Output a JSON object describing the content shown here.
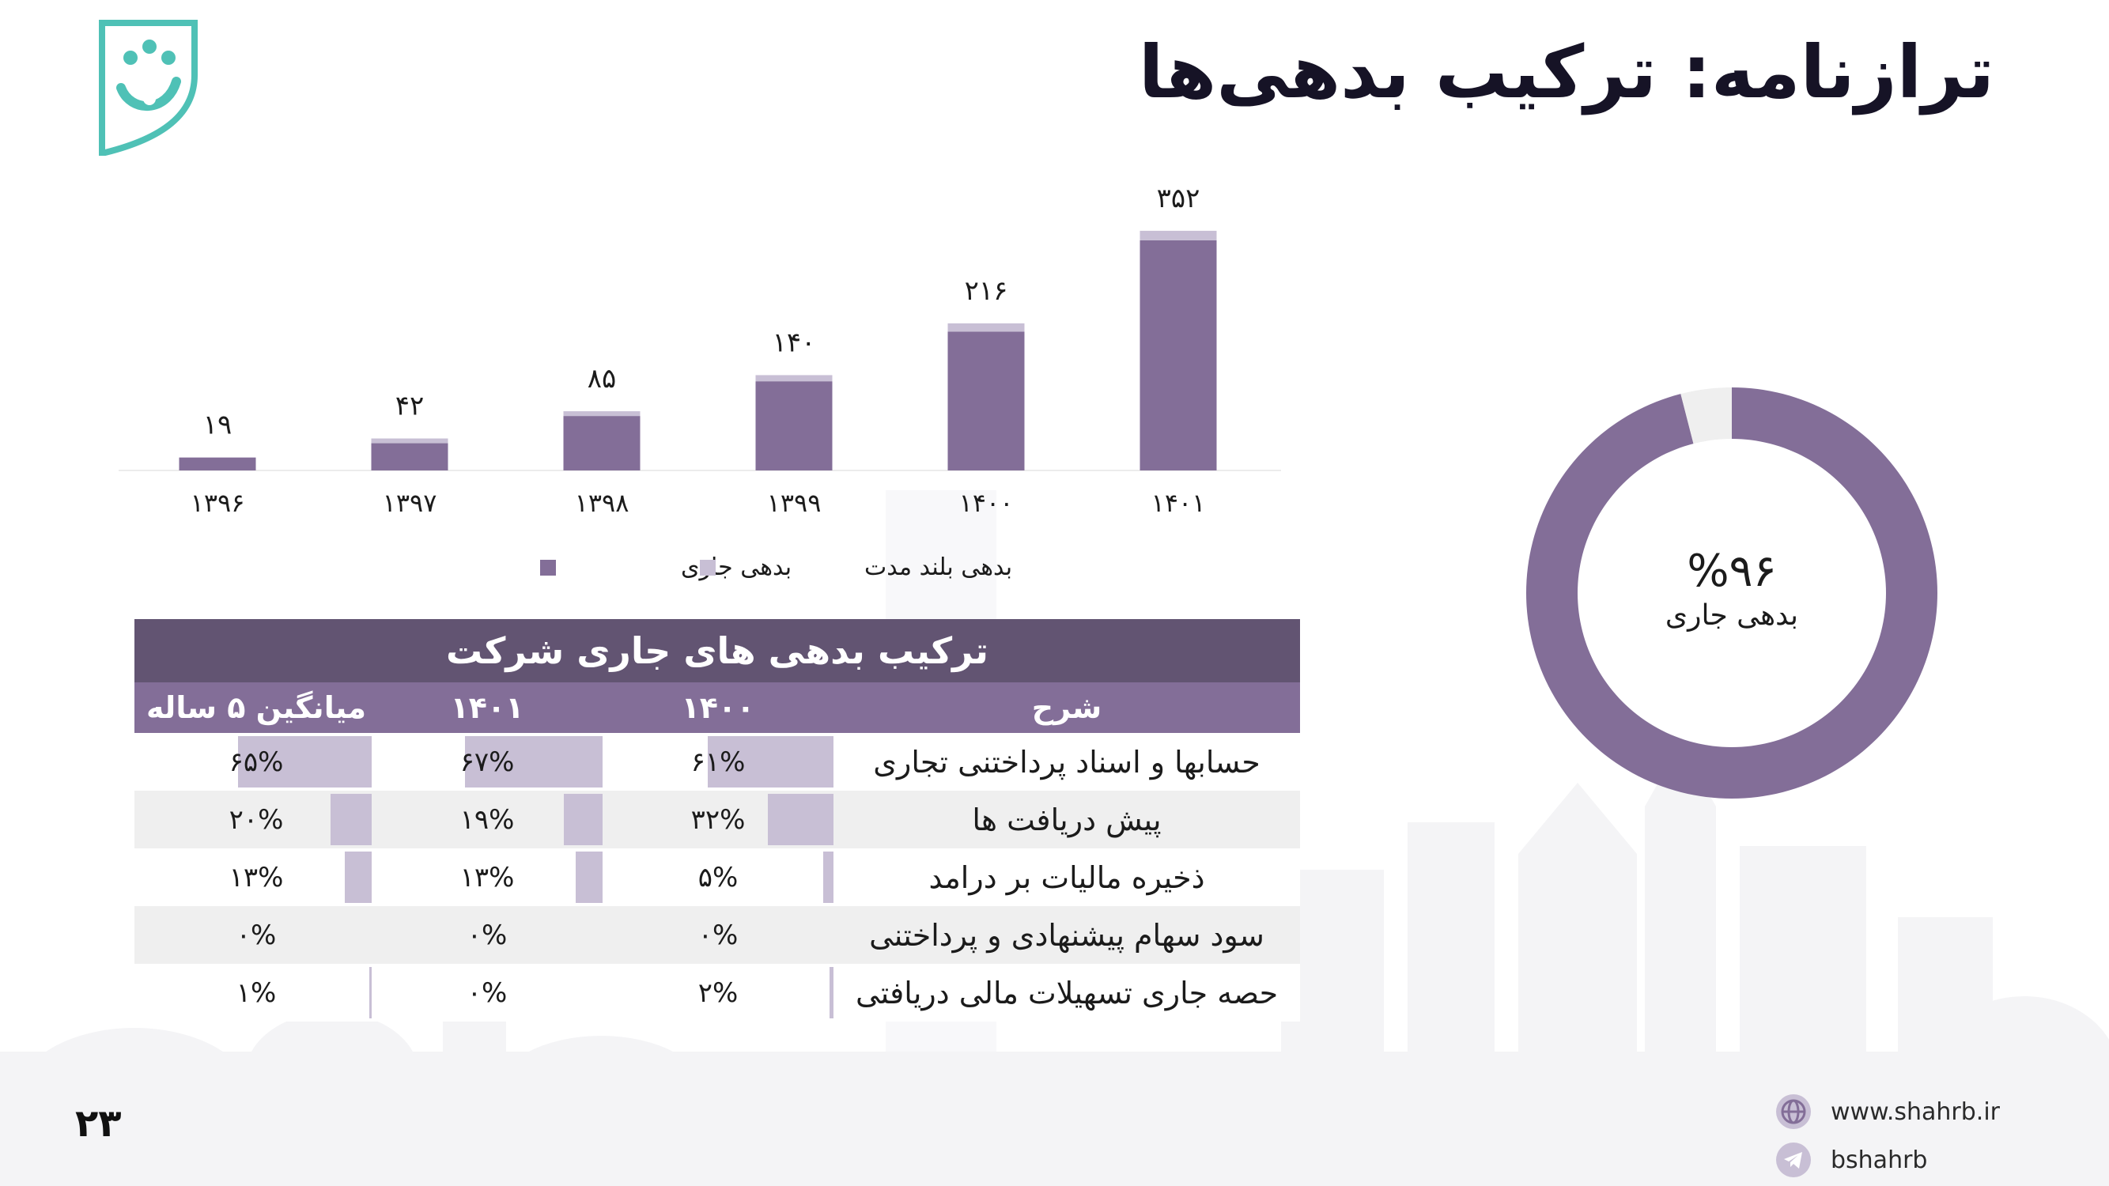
{
  "title": "ترازنامه: ترکیب بدهی‌ها",
  "page_number": "۲۳",
  "colors": {
    "current": "#836e98",
    "long_term": "#c8bfd5",
    "table_title_bg": "#625472",
    "table_header_bg": "#836e98",
    "table_bar": "#c8bfd5",
    "logo": "#4fc1b6",
    "donut_rest": "#efefef"
  },
  "chart_data": [
    {
      "type": "bar",
      "stacked": true,
      "categories": [
        "۱۳۹۶",
        "۱۳۹۷",
        "۱۳۹۸",
        "۱۳۹۹",
        "۱۴۰۰",
        "۱۴۰۱"
      ],
      "totals": [
        19,
        42,
        85,
        140,
        216,
        352
      ],
      "total_labels": [
        "۱۹",
        "۴۲",
        "۸۵",
        "۱۴۰",
        "۲۱۶",
        "۳۵۲"
      ],
      "series": [
        {
          "name": "بدهی جاری",
          "values": [
            19,
            40,
            80,
            131,
            204,
            338
          ]
        },
        {
          "name": "بدهی بلند مدت",
          "values": [
            0,
            2,
            5,
            9,
            12,
            14
          ]
        }
      ],
      "ylim": [
        0,
        360
      ],
      "legend_position": "bottom",
      "grid": false
    },
    {
      "type": "pie",
      "donut": true,
      "values": [
        96,
        4
      ],
      "center_value": "%۹۶",
      "center_label": "بدهی جاری"
    }
  ],
  "table": {
    "title": "ترکیب بدهی های جاری شرکت",
    "headers": [
      "شرح",
      "۱۴۰۰",
      "۱۴۰۱",
      "میانگین ۵ ساله"
    ],
    "rows": [
      {
        "desc": "حسابها و اسناد پرداختنی تجاری",
        "cells": [
          {
            "text": "۶۱%",
            "value": 61
          },
          {
            "text": "۶۷%",
            "value": 67
          },
          {
            "text": "۶۵%",
            "value": 65
          }
        ]
      },
      {
        "desc": "پیش دریافت ها",
        "cells": [
          {
            "text": "۳۲%",
            "value": 32
          },
          {
            "text": "۱۹%",
            "value": 19
          },
          {
            "text": "۲۰%",
            "value": 20
          }
        ]
      },
      {
        "desc": "ذخیره مالیات بر درامد",
        "cells": [
          {
            "text": "۵%",
            "value": 5
          },
          {
            "text": "۱۳%",
            "value": 13
          },
          {
            "text": "۱۳%",
            "value": 13
          }
        ]
      },
      {
        "desc": "سود سهام پیشنهادی و پرداختنی",
        "cells": [
          {
            "text": "۰%",
            "value": 0
          },
          {
            "text": "۰%",
            "value": 0
          },
          {
            "text": "۰%",
            "value": 0
          }
        ]
      },
      {
        "desc": "حصه جاری تسهیلات مالی دریافتی",
        "cells": [
          {
            "text": "۲%",
            "value": 2
          },
          {
            "text": "۰%",
            "value": 0
          },
          {
            "text": "۱%",
            "value": 1
          }
        ]
      }
    ]
  },
  "contact": {
    "website": "www.shahrb.ir",
    "telegram": "bshahrb",
    "website_icon": "globe-icon",
    "telegram_icon": "telegram-icon"
  }
}
